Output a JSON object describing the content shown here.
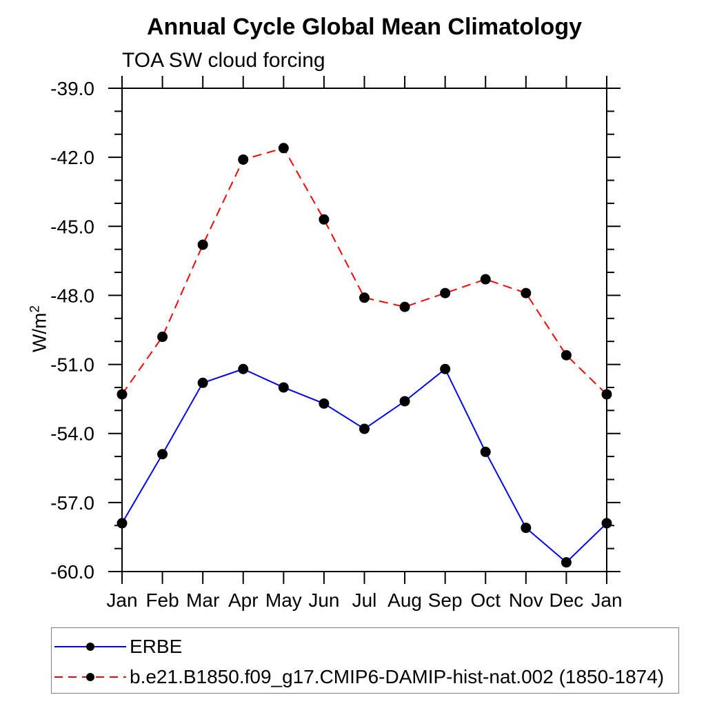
{
  "chart_data": {
    "type": "line",
    "title": "Annual Cycle Global Mean Climatology",
    "subtitle": "TOA SW cloud forcing",
    "ylabel_base": "W/m",
    "ylabel_exp": "2",
    "x_categories": [
      "Jan",
      "Feb",
      "Mar",
      "Apr",
      "May",
      "Jun",
      "Jul",
      "Aug",
      "Sep",
      "Oct",
      "Nov",
      "Dec",
      "Jan"
    ],
    "ylim": [
      -60.0,
      -39.0
    ],
    "y_major_tick_labels": [
      "-39.0",
      "-42.0",
      "-45.0",
      "-48.0",
      "-51.0",
      "-54.0",
      "-57.0",
      "-60.0"
    ],
    "y_major_step": 3.0,
    "y_minor_step": 1.0,
    "grid": false,
    "legend_position": "bottom",
    "series": [
      {
        "name": "ERBE",
        "color": "#0000ff",
        "style": "solid",
        "marker": "circle",
        "values": [
          -57.9,
          -54.9,
          -51.8,
          -51.2,
          -52.0,
          -52.7,
          -53.8,
          -52.6,
          -51.2,
          -54.8,
          -58.1,
          -59.6,
          -57.9
        ]
      },
      {
        "name": "b.e21.B1850.f09_g17.CMIP6-DAMIP-hist-nat.002 (1850-1874)",
        "color": "#ff0000",
        "style": "dashed",
        "marker": "circle",
        "values": [
          -52.3,
          -49.8,
          -45.8,
          -42.1,
          -41.6,
          -44.7,
          -48.1,
          -48.5,
          -47.9,
          -47.3,
          -47.9,
          -50.6,
          -52.3
        ]
      }
    ],
    "colors": {
      "axis": "#000000",
      "marker": "#000000",
      "tick_label": "#000000",
      "legend_border": "#808080"
    }
  }
}
